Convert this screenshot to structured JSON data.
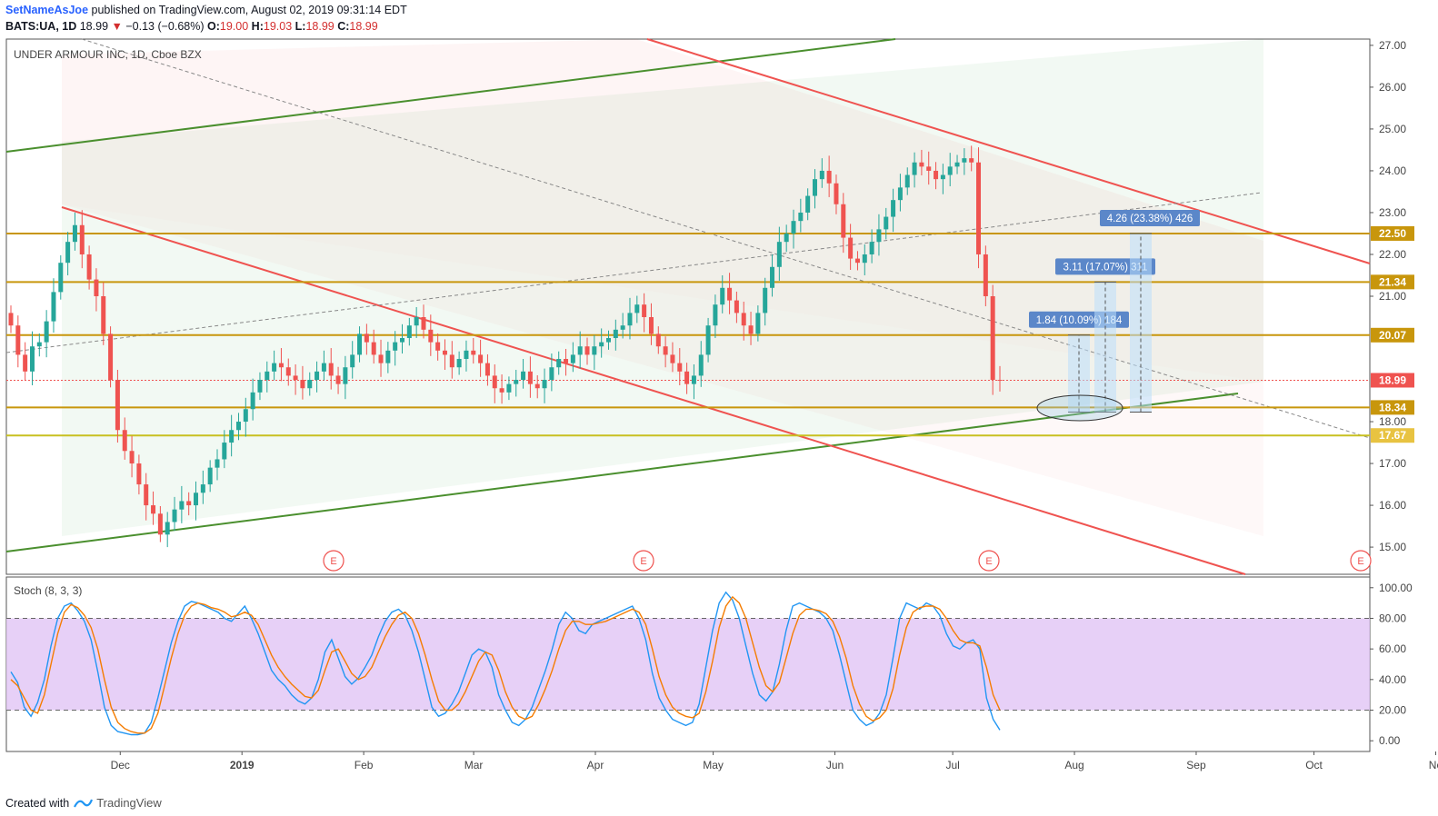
{
  "header": {
    "user": "SetNameAsJoe",
    "published_text": " published on TradingView.com, August 02, 2019 09:31:14 EDT",
    "symbol_line": "BATS:UA, 1D",
    "last": "18.99",
    "change": "−0.13 (−0.68%)",
    "o_label": "O:",
    "o": "19.00",
    "h_label": "H:",
    "h": "19.03",
    "l_label": "L:",
    "l": "18.99",
    "c_label": "C:",
    "c": "18.99"
  },
  "footer": {
    "created_with": "Created with",
    "brand": "TradingView"
  },
  "chart_data": [
    {
      "type": "candlestick",
      "title": "UNDER ARMOUR INC, 1D, Cboe BZX",
      "y_ticks": [
        "27.00",
        "26.00",
        "25.00",
        "24.00",
        "23.00",
        "22.00",
        "21.00",
        "18.00",
        "17.00",
        "16.00",
        "15.00"
      ],
      "ylim": [
        14.35,
        27.15
      ],
      "x_ticks": [
        {
          "label": "Dec",
          "day": 29
        },
        {
          "label": "2019",
          "day": 60
        },
        {
          "label": "Feb",
          "day": 91
        },
        {
          "label": "Mar",
          "day": 119
        },
        {
          "label": "Apr",
          "day": 150
        },
        {
          "label": "May",
          "day": 180
        },
        {
          "label": "Jun",
          "day": 211
        },
        {
          "label": "Jul",
          "day": 241
        },
        {
          "label": "Aug",
          "day": 272
        },
        {
          "label": "Sep",
          "day": 303
        },
        {
          "label": "Oct",
          "day": 333
        },
        {
          "label": "No",
          "day": 364
        }
      ],
      "price_levels": [
        {
          "value": 22.5,
          "label": "22.50",
          "color": "#c8960c"
        },
        {
          "value": 21.34,
          "label": "21.34",
          "color": "#c8960c"
        },
        {
          "value": 20.07,
          "label": "20.07",
          "color": "#c8960c"
        },
        {
          "value": 18.99,
          "label": "18.99",
          "color": "#ef5350"
        },
        {
          "value": 18.34,
          "label": "18.34",
          "color": "#c8960c"
        },
        {
          "value": 17.67,
          "label": "17.67",
          "color": "#c8c020"
        }
      ],
      "measurements": [
        {
          "label": "1.84 (10.09%) 184",
          "from": 18.23,
          "to": 20.07
        },
        {
          "label": "3.11 (17.07%) 311",
          "from": 18.23,
          "to": 21.34
        },
        {
          "label": "4.26 (23.38%) 426",
          "from": 18.23,
          "to": 22.5
        }
      ],
      "earnings_markers": [
        "E",
        "E",
        "E",
        "E"
      ],
      "closes": [
        20.3,
        19.6,
        19.2,
        19.8,
        19.9,
        20.4,
        21.1,
        21.8,
        22.3,
        22.7,
        22.0,
        21.4,
        21.0,
        20.1,
        19.0,
        17.8,
        17.3,
        17.0,
        16.5,
        16.0,
        15.8,
        15.3,
        15.6,
        15.9,
        16.1,
        16.0,
        16.3,
        16.5,
        16.9,
        17.1,
        17.5,
        17.8,
        18.0,
        18.3,
        18.7,
        19.0,
        19.2,
        19.4,
        19.3,
        19.1,
        19.0,
        18.8,
        19.0,
        19.2,
        19.4,
        19.1,
        18.9,
        19.3,
        19.6,
        20.1,
        19.9,
        19.6,
        19.4,
        19.7,
        19.9,
        20.0,
        20.3,
        20.5,
        20.2,
        19.9,
        19.7,
        19.6,
        19.3,
        19.5,
        19.7,
        19.6,
        19.4,
        19.1,
        18.8,
        18.7,
        18.9,
        19.0,
        19.2,
        18.9,
        18.8,
        19.0,
        19.3,
        19.5,
        19.4,
        19.6,
        19.8,
        19.6,
        19.8,
        19.9,
        20.0,
        20.2,
        20.3,
        20.6,
        20.8,
        20.5,
        20.1,
        19.8,
        19.6,
        19.4,
        19.2,
        18.9,
        19.1,
        19.6,
        20.3,
        20.8,
        21.2,
        20.9,
        20.6,
        20.3,
        20.1,
        20.6,
        21.2,
        21.7,
        22.3,
        22.5,
        22.8,
        23.0,
        23.4,
        23.8,
        24.0,
        23.7,
        23.2,
        22.4,
        21.9,
        21.8,
        22.0,
        22.3,
        22.6,
        22.9,
        23.3,
        23.6,
        23.9,
        24.2,
        24.1,
        24.0,
        23.8,
        23.9,
        24.1,
        24.2,
        24.3,
        24.2,
        22.0,
        21.0,
        19.0,
        18.99
      ],
      "y_axis_title": ""
    },
    {
      "type": "line",
      "title": "Stoch (8, 3, 3)",
      "y_ticks": [
        "100.00",
        "80.00",
        "60.00",
        "40.00",
        "20.00",
        "0.00"
      ],
      "ylim": [
        -7,
        107
      ],
      "band": [
        20,
        80
      ],
      "series": [
        {
          "color": "#2196f3",
          "values": [
            45,
            38,
            22,
            16,
            25,
            40,
            62,
            80,
            88,
            90,
            85,
            78,
            66,
            45,
            22,
            10,
            6,
            5,
            4,
            4,
            5,
            12,
            28,
            46,
            64,
            78,
            88,
            91,
            90,
            88,
            86,
            84,
            80,
            78,
            83,
            88,
            80,
            70,
            58,
            46,
            40,
            36,
            30,
            26,
            24,
            28,
            40,
            58,
            66,
            54,
            42,
            37,
            41,
            48,
            56,
            68,
            78,
            84,
            86,
            82,
            72,
            58,
            40,
            22,
            16,
            18,
            24,
            32,
            44,
            56,
            60,
            58,
            48,
            30,
            20,
            12,
            10,
            14,
            22,
            34,
            46,
            60,
            76,
            84,
            80,
            72,
            70,
            76,
            78,
            80,
            82,
            84,
            86,
            88,
            80,
            66,
            44,
            28,
            20,
            14,
            12,
            10,
            12,
            24,
            48,
            72,
            90,
            97,
            92,
            80,
            62,
            44,
            30,
            26,
            32,
            50,
            72,
            88,
            90,
            88,
            86,
            84,
            80,
            72,
            56,
            38,
            20,
            14,
            10,
            12,
            18,
            30,
            54,
            80,
            90,
            88,
            86,
            90,
            88,
            82,
            70,
            62,
            60,
            64,
            66,
            60,
            28,
            14,
            7
          ]
        },
        {
          "color": "#f57c00",
          "values": [
            40,
            36,
            28,
            20,
            18,
            30,
            50,
            70,
            84,
            89,
            87,
            82,
            74,
            60,
            40,
            22,
            12,
            8,
            6,
            5,
            5,
            8,
            18,
            36,
            54,
            70,
            82,
            88,
            90,
            89,
            87,
            86,
            84,
            81,
            82,
            84,
            82,
            76,
            66,
            56,
            48,
            42,
            37,
            33,
            29,
            28,
            33,
            46,
            58,
            60,
            52,
            44,
            40,
            42,
            48,
            58,
            68,
            76,
            82,
            84,
            80,
            70,
            56,
            40,
            26,
            20,
            20,
            24,
            32,
            42,
            52,
            58,
            56,
            46,
            32,
            22,
            16,
            14,
            16,
            24,
            34,
            46,
            60,
            72,
            78,
            78,
            76,
            76,
            77,
            78,
            80,
            82,
            84,
            86,
            84,
            76,
            60,
            42,
            30,
            22,
            18,
            16,
            15,
            18,
            32,
            52,
            74,
            88,
            94,
            90,
            80,
            64,
            48,
            36,
            32,
            38,
            54,
            70,
            82,
            86,
            86,
            85,
            83,
            78,
            68,
            54,
            36,
            24,
            16,
            13,
            15,
            20,
            34,
            56,
            74,
            84,
            87,
            88,
            88,
            86,
            80,
            72,
            66,
            64,
            64,
            62,
            48,
            30,
            20
          ]
        }
      ],
      "y_axis_title": ""
    }
  ],
  "colors": {
    "up": "#26a69a",
    "down": "#ef5350",
    "green_line": "#4a8f2e",
    "red_line": "#ef5350",
    "level": "#c8960c",
    "stoch_band": "#e1c4f5",
    "measure": "#5b87c9"
  }
}
